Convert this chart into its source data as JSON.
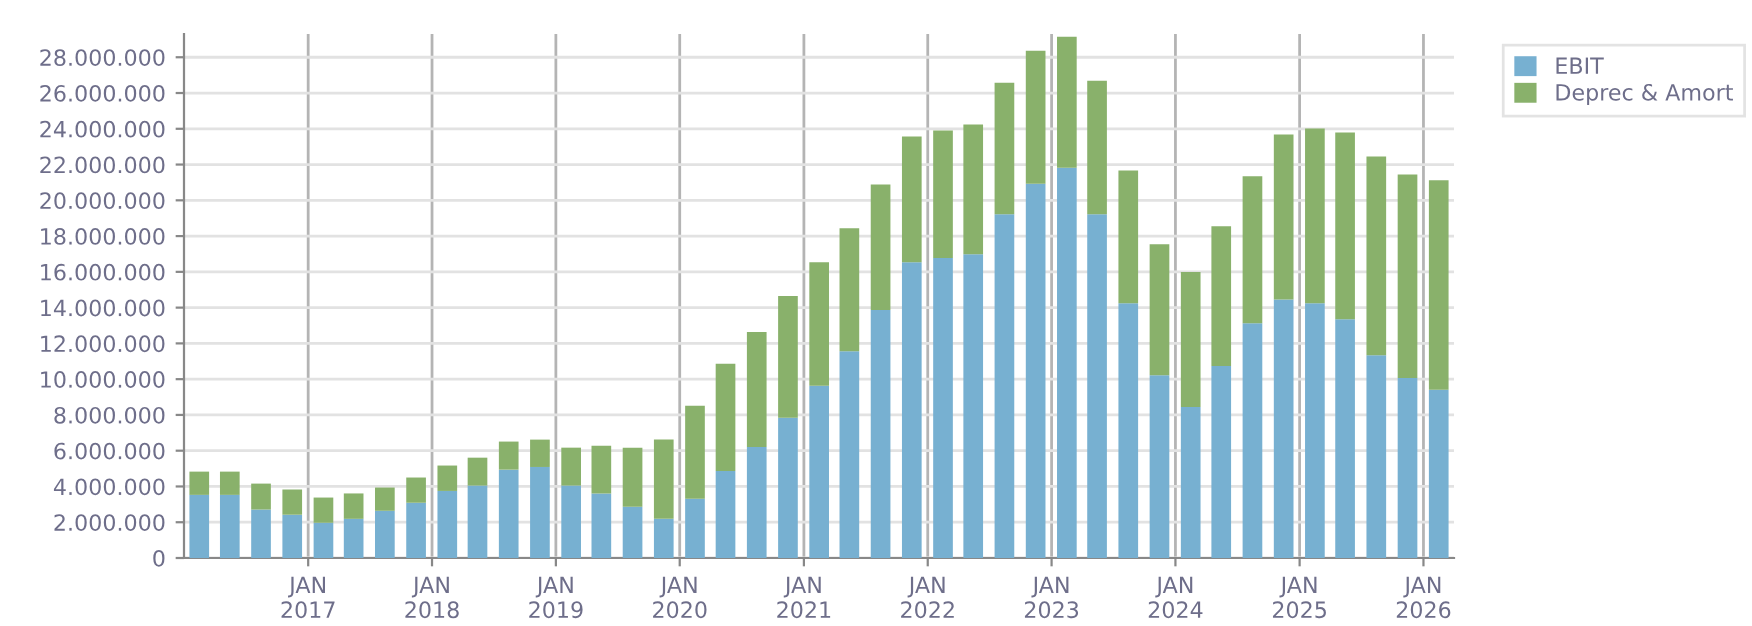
{
  "chart_data": {
    "type": "bar",
    "stacked": true,
    "x": [
      "2016-02-15",
      "2016-05-15",
      "2016-08-15",
      "2016-11-15",
      "2017-02-15",
      "2017-05-15",
      "2017-08-15",
      "2017-11-15",
      "2018-02-15",
      "2018-05-15",
      "2018-08-15",
      "2018-11-15",
      "2019-02-15",
      "2019-05-15",
      "2019-08-15",
      "2019-11-15",
      "2020-02-15",
      "2020-05-15",
      "2020-08-15",
      "2020-11-15",
      "2021-02-15",
      "2021-05-15",
      "2021-08-15",
      "2021-11-15",
      "2022-02-15",
      "2022-05-15",
      "2022-08-15",
      "2022-11-15",
      "2023-02-15",
      "2023-05-15",
      "2023-08-15",
      "2023-11-15",
      "2024-02-15",
      "2024-05-15",
      "2024-08-15",
      "2024-11-15",
      "2025-02-15",
      "2025-05-15",
      "2025-08-15",
      "2025-11-15",
      "2026-02-15"
    ],
    "series": [
      {
        "name": "EBIT",
        "color": "#77b0d1",
        "values": [
          3530000,
          3530000,
          2710000,
          2420000,
          1970000,
          2190000,
          2640000,
          3090000,
          3750000,
          4050000,
          4940000,
          5090000,
          4050000,
          3610000,
          2860000,
          2190000,
          3310000,
          4870000,
          6210000,
          7840000,
          9630000,
          11560000,
          13870000,
          16540000,
          16770000,
          16990000,
          19220000,
          20930000,
          21820000,
          19220000,
          14240000,
          10220000,
          8440000,
          10740000,
          13120000,
          14460000,
          14240000,
          13350000,
          11340000,
          10070000,
          9410000
        ]
      },
      {
        "name": "Deprec & Amort",
        "color": "#89b16b",
        "values": [
          1300000,
          1300000,
          1450000,
          1410000,
          1410000,
          1420000,
          1300000,
          1410000,
          1420000,
          1560000,
          1570000,
          1530000,
          2120000,
          2670000,
          3310000,
          4430000,
          5200000,
          5990000,
          6430000,
          6810000,
          6910000,
          6880000,
          7020000,
          7030000,
          7130000,
          7250000,
          7360000,
          7430000,
          7320000,
          7470000,
          7430000,
          7330000,
          7550000,
          7810000,
          8220000,
          9220000,
          9770000,
          10440000,
          11110000,
          11380000,
          11710000
        ]
      }
    ],
    "xlim": [
      "2016-01-01",
      "2026-04-01"
    ],
    "xticks": [
      {
        "value": "2017-01-01",
        "label": "JAN\n2017"
      },
      {
        "value": "2018-01-01",
        "label": "JAN\n2018"
      },
      {
        "value": "2019-01-01",
        "label": "JAN\n2019"
      },
      {
        "value": "2020-01-01",
        "label": "JAN\n2020"
      },
      {
        "value": "2021-01-01",
        "label": "JAN\n2021"
      },
      {
        "value": "2022-01-01",
        "label": "JAN\n2022"
      },
      {
        "value": "2023-01-01",
        "label": "JAN\n2023"
      },
      {
        "value": "2024-01-01",
        "label": "JAN\n2024"
      },
      {
        "value": "2025-01-01",
        "label": "JAN\n2025"
      },
      {
        "value": "2026-01-01",
        "label": "JAN\n2026"
      }
    ],
    "ylim": [
      0,
      29300000
    ],
    "yticks": [
      0,
      {
        "value": 2000000,
        "label": "2.000.000"
      },
      {
        "value": 4000000,
        "label": "4.000.000"
      },
      {
        "value": 6000000,
        "label": "6.000.000"
      },
      {
        "value": 8000000,
        "label": "8.000.000"
      },
      {
        "value": 10000000,
        "label": "10.000.000"
      },
      {
        "value": 12000000,
        "label": "12.000.000"
      },
      {
        "value": 14000000,
        "label": "14.000.000"
      },
      {
        "value": 16000000,
        "label": "16.000.000"
      },
      {
        "value": 18000000,
        "label": "18.000.000"
      },
      {
        "value": 20000000,
        "label": "20.000.000"
      },
      {
        "value": 22000000,
        "label": "22.000.000"
      },
      {
        "value": 24000000,
        "label": "24.000.000"
      },
      {
        "value": 26000000,
        "label": "26.000.000"
      },
      {
        "value": 28000000,
        "label": "28.000.000"
      }
    ],
    "grid": true,
    "legend": "top right"
  }
}
